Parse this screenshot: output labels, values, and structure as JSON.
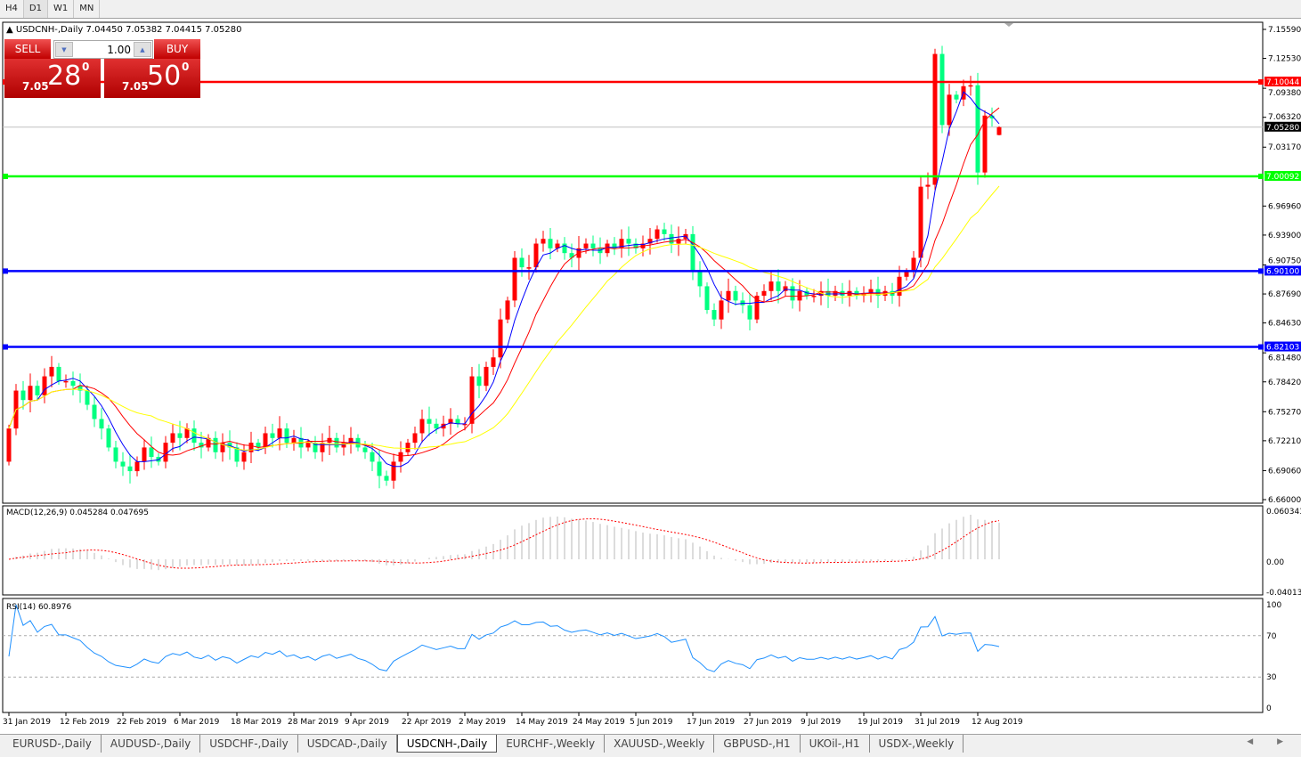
{
  "toolbar": {
    "timeframes": [
      "H4",
      "D1",
      "W1",
      "MN"
    ],
    "active": "D1"
  },
  "header": {
    "symbol": "USDCNH-,Daily",
    "ohlc": "7.04450 7.05382 7.04415 7.05280"
  },
  "trade_panel": {
    "sell_label": "SELL",
    "buy_label": "BUY",
    "lots": "1.00",
    "sell_prefix": "7.05",
    "sell_big": "28",
    "sell_sup": "0",
    "buy_prefix": "7.05",
    "buy_big": "50",
    "buy_sup": "0"
  },
  "chart_data": {
    "type": "candlestick",
    "symbol": "USDCNH-",
    "timeframe": "Daily",
    "ylim": [
      6.66,
      7.1559
    ],
    "y_ticks": [
      "7.15590",
      "7.12530",
      "7.09380",
      "7.06320",
      "7.03170",
      "6.96960",
      "6.93900",
      "6.90750",
      "6.87690",
      "6.84630",
      "6.81480",
      "6.78420",
      "6.75270",
      "6.72210",
      "6.69060",
      "6.66000"
    ],
    "x_ticks": [
      "31 Jan 2019",
      "12 Feb 2019",
      "22 Feb 2019",
      "6 Mar 2019",
      "18 Mar 2019",
      "28 Mar 2019",
      "9 Apr 2019",
      "22 Apr 2019",
      "2 May 2019",
      "14 May 2019",
      "24 May 2019",
      "5 Jun 2019",
      "17 Jun 2019",
      "27 Jun 2019",
      "9 Jul 2019",
      "19 Jul 2019",
      "31 Jul 2019",
      "12 Aug 2019"
    ],
    "first_open": 6.7,
    "closes": [
      6.735,
      6.775,
      6.765,
      6.78,
      6.77,
      6.79,
      6.8,
      6.785,
      6.785,
      6.78,
      6.775,
      6.76,
      6.745,
      6.735,
      6.715,
      6.7,
      6.695,
      6.69,
      6.7,
      6.715,
      6.705,
      6.7,
      6.72,
      6.73,
      6.725,
      6.735,
      6.72,
      6.715,
      6.725,
      6.71,
      6.72,
      6.715,
      6.7,
      6.71,
      6.72,
      6.715,
      6.73,
      6.725,
      6.735,
      6.72,
      6.725,
      6.715,
      6.72,
      6.71,
      6.72,
      6.725,
      6.715,
      6.72,
      6.725,
      6.715,
      6.71,
      6.7,
      6.685,
      6.68,
      6.7,
      6.71,
      6.72,
      6.73,
      6.745,
      6.74,
      6.735,
      6.74,
      6.745,
      6.74,
      6.74,
      6.79,
      6.78,
      6.8,
      6.81,
      6.85,
      6.87,
      6.915,
      6.905,
      6.905,
      6.93,
      6.935,
      6.925,
      6.93,
      6.92,
      6.915,
      6.925,
      6.93,
      6.925,
      6.92,
      6.93,
      6.925,
      6.935,
      6.93,
      6.925,
      6.93,
      6.935,
      6.945,
      6.94,
      6.93,
      6.935,
      6.94,
      6.9,
      6.885,
      6.86,
      6.85,
      6.87,
      6.88,
      6.87,
      6.865,
      6.85,
      6.875,
      6.88,
      6.89,
      6.88,
      6.885,
      6.87,
      6.88,
      6.875,
      6.875,
      6.88,
      6.875,
      6.88,
      6.875,
      6.88,
      6.875,
      6.878,
      6.882,
      6.875,
      6.88,
      6.875,
      6.895,
      6.9,
      6.915,
      6.99,
      6.992,
      7.13,
      7.055,
      7.087,
      7.082,
      7.096,
      7.097,
      7.005,
      7.065,
      7.062,
      7.0528
    ],
    "last_bar": {
      "open": 7.0445,
      "high": 7.05382,
      "low": 7.04415,
      "close": 7.0528
    },
    "current_price": "7.05280",
    "moving_averages": [
      {
        "color": "#0000ff"
      },
      {
        "color": "#ff0000"
      },
      {
        "color": "#ffff00"
      }
    ],
    "bull_color": "#ff0000",
    "bear_color": "#00ff80",
    "levels": [
      {
        "price": "7.10044",
        "color": "#ff0000"
      },
      {
        "price": "7.00092",
        "color": "#00ff00"
      },
      {
        "price": "6.90100",
        "color": "#0000ff"
      },
      {
        "price": "6.82103",
        "color": "#0000ff"
      }
    ],
    "macd": {
      "label": "MACD(12,26,9) 0.045284 0.047695",
      "ticks": [
        "0.060343",
        "0.00",
        "-0.040136"
      ],
      "ylim": [
        -0.040136,
        0.060343
      ]
    },
    "rsi": {
      "label": "RSI(14) 60.8976",
      "ticks": [
        "100",
        "70",
        "30",
        "0"
      ],
      "levels": [
        70,
        30
      ]
    }
  },
  "tabs": [
    "EURUSD-,Daily",
    "AUDUSD-,Daily",
    "USDCHF-,Daily",
    "USDCAD-,Daily",
    "USDCNH-,Daily",
    "EURCHF-,Weekly",
    "XAUUSD-,Weekly",
    "GBPUSD-,H1",
    "UKOil-,H1",
    "USDX-,Weekly"
  ],
  "active_tab": "USDCNH-,Daily",
  "tab_scroll": "◀ ▶"
}
